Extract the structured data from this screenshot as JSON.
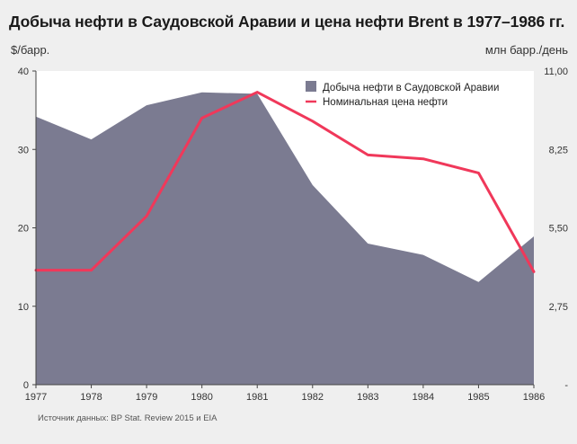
{
  "chart_data": {
    "type": "area",
    "title": "Добыча нефти в Саудовской Аравии и цена нефти Brent в 1977–1986 гг.",
    "ylabel_left": "$/барр.",
    "ylabel_right": "млн барр./день",
    "categories": [
      "1977",
      "1978",
      "1979",
      "1980",
      "1981",
      "1982",
      "1983",
      "1984",
      "1985",
      "1986"
    ],
    "left_axis": {
      "ylim": [
        0,
        40
      ],
      "ticks": [
        "0",
        "10",
        "20",
        "30",
        "40"
      ]
    },
    "right_axis": {
      "ylim": [
        0,
        11
      ],
      "ticks": [
        "-",
        "2,75",
        "5,50",
        "8,25",
        "11,00"
      ]
    },
    "series": [
      {
        "name": "Добыча нефти в Саудовской Аравии",
        "kind": "area",
        "axis": "right",
        "color": "#7b7b91",
        "values": [
          9.4,
          8.6,
          9.8,
          10.25,
          10.2,
          7.0,
          4.95,
          4.55,
          3.6,
          5.2
        ]
      },
      {
        "name": "Номинальная цена нефти",
        "kind": "line",
        "axis": "left",
        "color": "#f0385a",
        "values": [
          14.6,
          14.6,
          21.5,
          34.0,
          37.3,
          33.6,
          29.3,
          28.8,
          27.0,
          14.4
        ]
      }
    ],
    "grid": false,
    "legend_position": "top-right"
  },
  "source": "Источник данных: BP Stat. Review 2015 и EIA",
  "colors": {
    "background": "#efefef",
    "plot_background": "#ffffff",
    "area": "#7b7b91",
    "line": "#f0385a"
  }
}
